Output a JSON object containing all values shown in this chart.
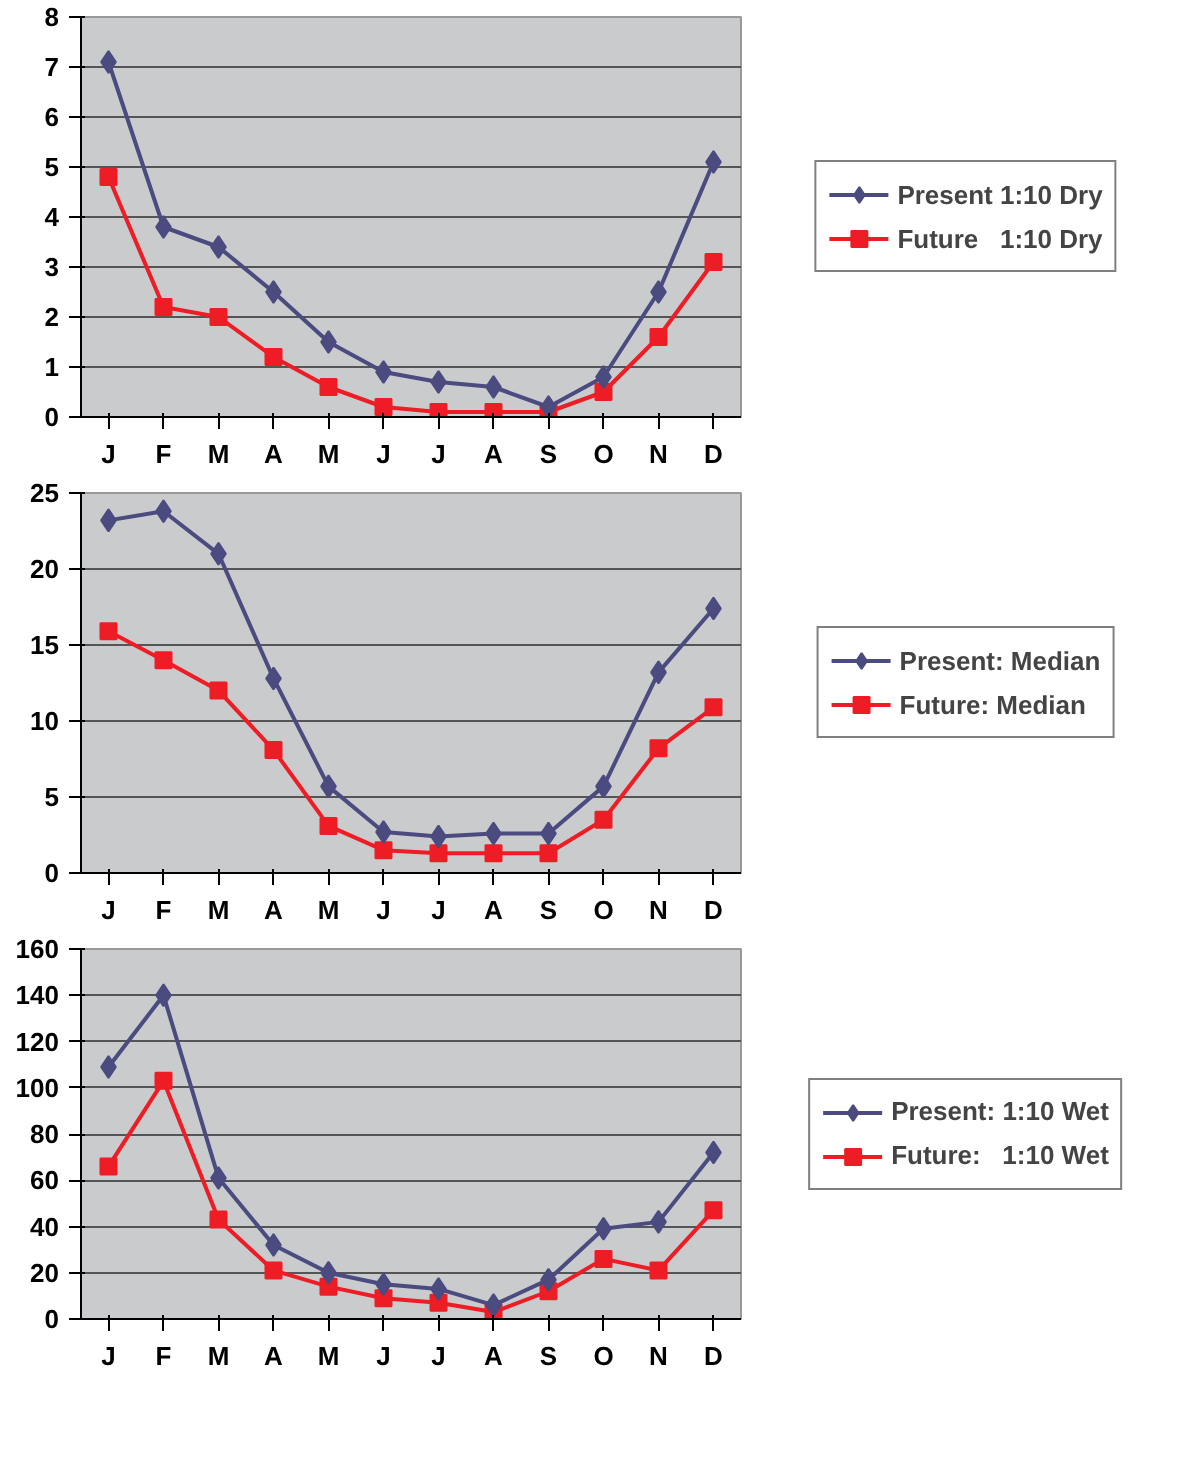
{
  "chart_data": [
    {
      "type": "line",
      "categories": [
        "J",
        "F",
        "M",
        "A",
        "M",
        "J",
        "J",
        "A",
        "S",
        "O",
        "N",
        "D"
      ],
      "ylim": [
        0,
        8
      ],
      "yticks": [
        0,
        1,
        2,
        3,
        4,
        5,
        6,
        7,
        8
      ],
      "grid": "y",
      "legend": "right",
      "series": [
        {
          "name": "Present 1:10 Dry",
          "color": "#4b4b80",
          "marker": "diamond",
          "values": [
            7.1,
            3.8,
            3.4,
            2.5,
            1.5,
            0.9,
            0.7,
            0.6,
            0.2,
            0.8,
            2.5,
            5.1
          ]
        },
        {
          "name": "Future   1:10 Dry",
          "color": "#ee1c24",
          "marker": "square",
          "values": [
            4.8,
            2.2,
            2.0,
            1.2,
            0.6,
            0.2,
            0.1,
            0.1,
            0.1,
            0.5,
            1.6,
            3.1
          ]
        }
      ]
    },
    {
      "type": "line",
      "categories": [
        "J",
        "F",
        "M",
        "A",
        "M",
        "J",
        "J",
        "A",
        "S",
        "O",
        "N",
        "D"
      ],
      "ylim": [
        0,
        25
      ],
      "yticks": [
        0,
        5,
        10,
        15,
        20,
        25
      ],
      "grid": "y",
      "legend": "right",
      "series": [
        {
          "name": "Present: Median",
          "color": "#4b4b80",
          "marker": "diamond",
          "values": [
            23.2,
            23.8,
            21,
            12.8,
            5.7,
            2.7,
            2.4,
            2.6,
            2.6,
            5.7,
            13.2,
            17.4
          ]
        },
        {
          "name": "Future: Median",
          "color": "#ee1c24",
          "marker": "square",
          "values": [
            15.9,
            14,
            12,
            8.1,
            3.1,
            1.5,
            1.3,
            1.3,
            1.3,
            3.5,
            8.2,
            10.9
          ]
        }
      ]
    },
    {
      "type": "line",
      "categories": [
        "J",
        "F",
        "M",
        "A",
        "M",
        "J",
        "J",
        "A",
        "S",
        "O",
        "N",
        "D"
      ],
      "ylim": [
        0,
        160
      ],
      "yticks": [
        0,
        20,
        40,
        60,
        80,
        100,
        120,
        140,
        160
      ],
      "grid": "y",
      "legend": "right",
      "series": [
        {
          "name": "Present: 1:10 Wet",
          "color": "#4b4b80",
          "marker": "diamond",
          "values": [
            109,
            140,
            61,
            32,
            20,
            15,
            13,
            6,
            17,
            39,
            42,
            72
          ]
        },
        {
          "name": "Future:   1:10 Wet",
          "color": "#ee1c24",
          "marker": "square",
          "values": [
            66,
            103,
            43,
            21,
            14,
            9,
            7,
            3,
            12,
            26,
            21,
            47
          ]
        }
      ]
    }
  ]
}
